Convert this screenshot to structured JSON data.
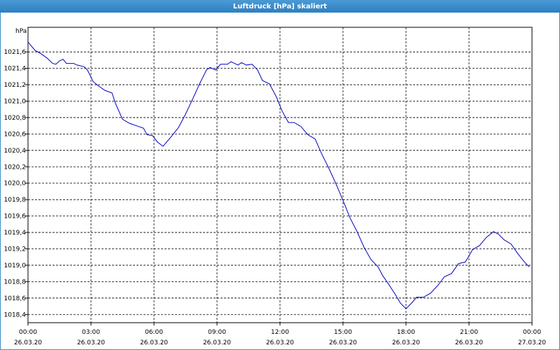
{
  "chart_data": {
    "type": "line",
    "title": "Luftdruck [hPa] skaliert",
    "y_unit": "hPa",
    "color": "#0000c0",
    "grid": true,
    "xlim": [
      0,
      24
    ],
    "xticks": [
      {
        "value": 0,
        "label": "00:00"
      },
      {
        "value": 3,
        "label": "03:00"
      },
      {
        "value": 6,
        "label": "06:00"
      },
      {
        "value": 9,
        "label": "09:00"
      },
      {
        "value": 12,
        "label": "12:00"
      },
      {
        "value": 15,
        "label": "15:00"
      },
      {
        "value": 18,
        "label": "18:00"
      },
      {
        "value": 21,
        "label": "21:00"
      },
      {
        "value": 24,
        "label": "00:00"
      }
    ],
    "xtick_dates": [
      "26.03.20",
      "26.03.20",
      "26.03.20",
      "26.03.20",
      "26.03.20",
      "26.03.20",
      "26.03.20",
      "26.03.20",
      "27.03.20"
    ],
    "ylim": [
      1018.3,
      1021.9
    ],
    "yticks": [
      {
        "value": 1018.4,
        "label": "1018,4"
      },
      {
        "value": 1018.6,
        "label": "1018,6"
      },
      {
        "value": 1018.8,
        "label": "1018,8"
      },
      {
        "value": 1019.0,
        "label": "1019,0"
      },
      {
        "value": 1019.2,
        "label": "1019,2"
      },
      {
        "value": 1019.4,
        "label": "1019,4"
      },
      {
        "value": 1019.6,
        "label": "1019,6"
      },
      {
        "value": 1019.8,
        "label": "1019,8"
      },
      {
        "value": 1020.0,
        "label": "1020,0"
      },
      {
        "value": 1020.2,
        "label": "1020,2"
      },
      {
        "value": 1020.4,
        "label": "1020,4"
      },
      {
        "value": 1020.6,
        "label": "1020,6"
      },
      {
        "value": 1020.8,
        "label": "1020,8"
      },
      {
        "value": 1021.0,
        "label": "1021,0"
      },
      {
        "value": 1021.2,
        "label": "1021,2"
      },
      {
        "value": 1021.4,
        "label": "1021,4"
      },
      {
        "value": 1021.6,
        "label": "1021,6"
      }
    ],
    "x": [
      0,
      0.33,
      0.67,
      0.93,
      1.17,
      1.33,
      1.5,
      1.67,
      1.83,
      2.17,
      2.33,
      2.67,
      2.83,
      3.1,
      3.33,
      3.67,
      4,
      4.17,
      4.5,
      4.83,
      5.17,
      5.5,
      5.67,
      5.93,
      6.17,
      6.43,
      6.83,
      7.17,
      7.5,
      7.83,
      8.17,
      8.5,
      8.67,
      8.93,
      9.17,
      9.5,
      9.67,
      10,
      10.17,
      10.4,
      10.67,
      10.93,
      11.17,
      11.5,
      11.83,
      12.1,
      12.4,
      12.67,
      13,
      13.33,
      13.67,
      14,
      14.33,
      14.67,
      15,
      15.33,
      15.67,
      16,
      16.33,
      16.67,
      16.9,
      17.17,
      17.5,
      17.73,
      18,
      18.27,
      18.5,
      18.83,
      19.17,
      19.5,
      19.83,
      20.17,
      20.5,
      20.83,
      21.17,
      21.5,
      21.83,
      22.17,
      22.4,
      22.67,
      23,
      23.33,
      23.67,
      23.87
    ],
    "values": [
      1021.72,
      1021.62,
      1021.57,
      1021.52,
      1021.46,
      1021.45,
      1021.49,
      1021.51,
      1021.46,
      1021.46,
      1021.44,
      1021.42,
      1021.38,
      1021.24,
      1021.19,
      1021.13,
      1021.1,
      1020.97,
      1020.78,
      1020.73,
      1020.7,
      1020.67,
      1020.59,
      1020.58,
      1020.5,
      1020.45,
      1020.57,
      1020.68,
      1020.84,
      1021.02,
      1021.21,
      1021.38,
      1021.41,
      1021.38,
      1021.45,
      1021.45,
      1021.48,
      1021.44,
      1021.47,
      1021.44,
      1021.45,
      1021.38,
      1021.25,
      1021.21,
      1021.05,
      1020.88,
      1020.74,
      1020.74,
      1020.69,
      1020.59,
      1020.54,
      1020.35,
      1020.18,
      1019.99,
      1019.79,
      1019.58,
      1019.41,
      1019.22,
      1019.07,
      1018.98,
      1018.87,
      1018.77,
      1018.64,
      1018.54,
      1018.47,
      1018.54,
      1018.61,
      1018.61,
      1018.66,
      1018.75,
      1018.86,
      1018.9,
      1019.02,
      1019.04,
      1019.19,
      1019.24,
      1019.34,
      1019.41,
      1019.38,
      1019.31,
      1019.26,
      1019.14,
      1019.03,
      1018.98
    ]
  }
}
